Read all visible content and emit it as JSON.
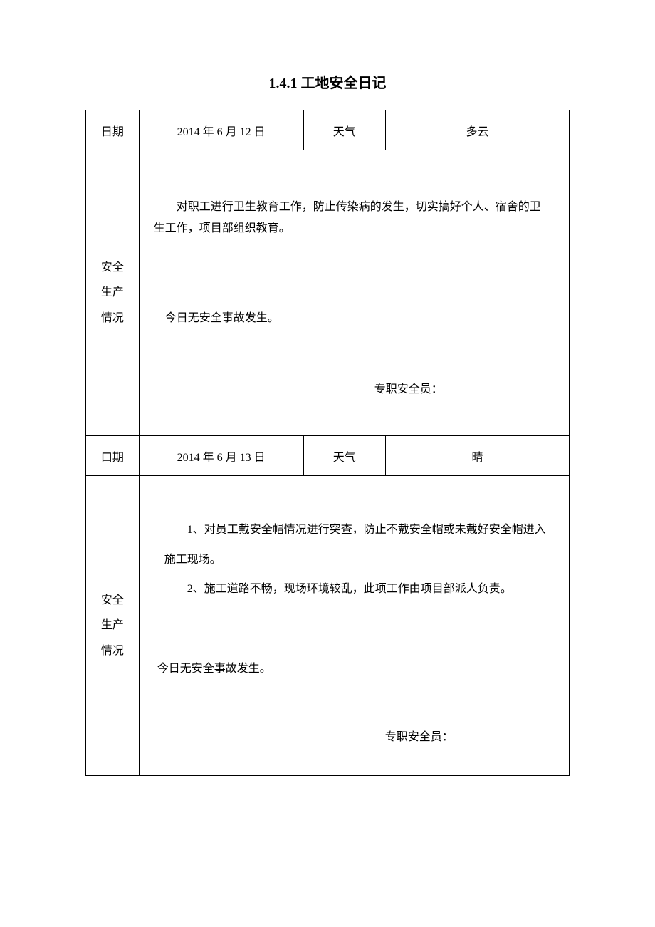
{
  "title": "1.4.1 工地安全日记",
  "entries": [
    {
      "date_label": "日期",
      "date_value": "2014 年 6 月 12 日",
      "weather_label": "天气",
      "weather_value": "多云",
      "side_label_1": "安全",
      "side_label_2": "生产",
      "side_label_3": "情况",
      "content_p1": "对职工进行卫生教育工作，防止传染病的发生，切实搞好个人、宿舍的卫生工作，项目部组织教育。",
      "no_accident": "今日无安全事故发生。",
      "officer": "专职安全员："
    },
    {
      "date_label": "口期",
      "date_value": "2014 年 6 月 13 日",
      "weather_label": "天气",
      "weather_value": "晴",
      "side_label_1": "安全",
      "side_label_2": "生产",
      "side_label_3": "情况",
      "content_p1": "1、对员工戴安全帽情况进行突查，防止不戴安全帽或未戴好安全帽进入施工现场。",
      "content_p2": "2、施工道路不畅，现场环境较乱，此项工作由项目部派人负责。",
      "no_accident": "今日无安全事故发生。",
      "officer": "专职安全员："
    }
  ],
  "styling": {
    "page_bg": "#ffffff",
    "text_color": "#000000",
    "border_color": "#000000",
    "title_fontsize": 20,
    "body_fontsize": 16,
    "font_family": "SimSun"
  }
}
